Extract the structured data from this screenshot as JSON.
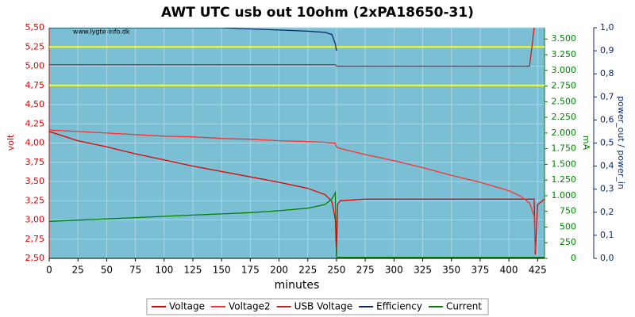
{
  "chart_data": {
    "type": "line",
    "title": "AWT UTC usb out 10ohm (2xPA18650-31)",
    "watermark": "www.lygte-info.dk",
    "xlabel": "minutes",
    "ylabel": "volt",
    "y2label": "mA",
    "y3label": "power_out / power_in",
    "x": [
      0,
      25,
      50,
      75,
      100,
      125,
      150,
      175,
      200,
      225,
      240,
      246,
      249,
      250,
      251,
      253,
      275,
      300,
      325,
      350,
      375,
      400,
      410,
      418,
      422,
      423,
      425,
      431
    ],
    "xlim": [
      0,
      431
    ],
    "xticks": [
      0,
      25,
      50,
      75,
      100,
      125,
      150,
      175,
      200,
      225,
      250,
      275,
      300,
      325,
      350,
      375,
      400,
      425
    ],
    "ylim": [
      2.5,
      5.5
    ],
    "yticks": [
      {
        "value": 2.5,
        "label": "2,50"
      },
      {
        "value": 2.75,
        "label": "2,75"
      },
      {
        "value": 3,
        "label": "3,00"
      },
      {
        "value": 3.25,
        "label": "3,25"
      },
      {
        "value": 3.5,
        "label": "3,50"
      },
      {
        "value": 3.75,
        "label": "3,75"
      },
      {
        "value": 4,
        "label": "4,00"
      },
      {
        "value": 4.25,
        "label": "4,25"
      },
      {
        "value": 4.5,
        "label": "4,50"
      },
      {
        "value": 4.75,
        "label": "4,75"
      },
      {
        "value": 5,
        "label": "5,00"
      },
      {
        "value": 5.25,
        "label": "5,25"
      },
      {
        "value": 5.5,
        "label": "5,50"
      }
    ],
    "y2lim": [
      0,
      3680
    ],
    "y2ticks": [
      0,
      250,
      500,
      750,
      {
        "value": 1000,
        "label": "1.000"
      },
      {
        "value": 1250,
        "label": "1.250"
      },
      {
        "value": 1500,
        "label": "1.500"
      },
      {
        "value": 1750,
        "label": "1.750"
      },
      {
        "value": 2000,
        "label": "2.000"
      },
      {
        "value": 2250,
        "label": "2.250"
      },
      {
        "value": 2500,
        "label": "2.500"
      },
      {
        "value": 2750,
        "label": "2.750"
      },
      {
        "value": 3000,
        "label": "3.000"
      },
      {
        "value": 3250,
        "label": "3.250"
      },
      {
        "value": 3500,
        "label": "3.500"
      }
    ],
    "y3lim": [
      0,
      1
    ],
    "y3ticks": [
      {
        "value": 0,
        "label": "0,0"
      },
      {
        "value": 0.1,
        "label": "0,1"
      },
      {
        "value": 0.2,
        "label": "0,2"
      },
      {
        "value": 0.3,
        "label": "0,3"
      },
      {
        "value": 0.4,
        "label": "0,4"
      },
      {
        "value": 0.5,
        "label": "0,5"
      },
      {
        "value": 0.6,
        "label": "0,6"
      },
      {
        "value": 0.7,
        "label": "0,7"
      },
      {
        "value": 0.8,
        "label": "0,8"
      },
      {
        "value": 0.9,
        "label": "0,9"
      },
      {
        "value": 1,
        "label": "1,0"
      }
    ],
    "hlines": [
      5.25,
      4.75
    ],
    "hline_color": "#ffff00",
    "grid": true,
    "legend": "bottom",
    "series": [
      {
        "name": "Voltage",
        "color": "#e00000",
        "values": [
          4.15,
          4.03,
          3.95,
          3.86,
          3.78,
          3.7,
          3.63,
          3.56,
          3.49,
          3.41,
          3.33,
          3.24,
          3.0,
          2.55,
          3.2,
          3.25,
          3.27,
          3.27,
          3.27,
          3.27,
          3.27,
          3.27,
          3.27,
          3.27,
          3.27,
          2.55,
          3.2,
          3.27
        ]
      },
      {
        "name": "Voltage2",
        "color": "#ff3030",
        "values": [
          4.17,
          4.15,
          4.13,
          4.11,
          4.09,
          4.08,
          4.06,
          4.05,
          4.03,
          4.02,
          4.01,
          4.0,
          4.0,
          3.95,
          3.94,
          3.93,
          3.85,
          3.77,
          3.68,
          3.58,
          3.49,
          3.38,
          3.31,
          3.22,
          3.05,
          2.6,
          null,
          null
        ]
      },
      {
        "name": "USB Voltage",
        "color": "#c81e1e",
        "values": [
          5.02,
          5.02,
          5.02,
          5.02,
          5.02,
          5.02,
          5.02,
          5.02,
          5.02,
          5.02,
          5.02,
          5.02,
          5.02,
          5.0,
          5.0,
          5.0,
          5.0,
          5.0,
          5.0,
          5.0,
          5.0,
          5.0,
          5.0,
          5.0,
          5.5,
          null,
          null,
          null
        ]
      },
      {
        "name": "Efficiency",
        "color": "#0a2a6e",
        "axis": "y3",
        "values": [
          1.0,
          1.0,
          1.0,
          1.0,
          1.0,
          1.0,
          1.0,
          0.995,
          0.99,
          0.985,
          0.98,
          0.97,
          0.93,
          0.9,
          null,
          null,
          null,
          null,
          null,
          null,
          null,
          null,
          null,
          null,
          null,
          null,
          null,
          null
        ]
      },
      {
        "name": "Current",
        "color": "#008000",
        "axis": "y2",
        "values": [
          590,
          610,
          630,
          650,
          670,
          690,
          710,
          730,
          760,
          800,
          860,
          950,
          1050,
          30,
          15,
          15,
          15,
          15,
          15,
          15,
          15,
          15,
          15,
          15,
          15,
          15,
          15,
          15
        ]
      }
    ]
  }
}
